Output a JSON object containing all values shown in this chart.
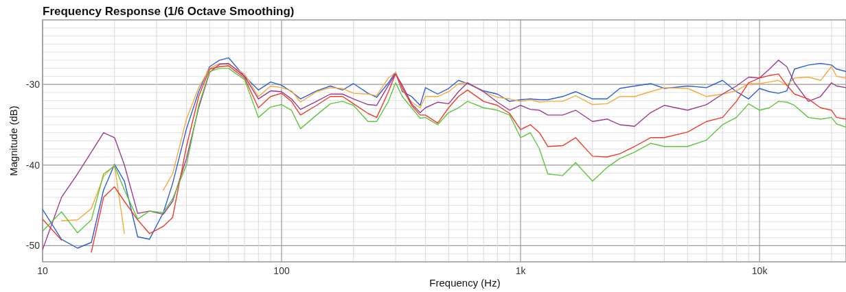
{
  "chart_data": {
    "type": "line",
    "title": "Frequency Response (1/6 Octave Smoothing)",
    "xlabel": "Frequency (Hz)",
    "ylabel": "Magnitude (dB)",
    "log": "x",
    "grid": true,
    "marker": "none",
    "line_style": "solid",
    "xlim": [
      10,
      23000
    ],
    "ylim": [
      -52,
      -22
    ],
    "xticks": [
      {
        "value": 10,
        "label": "10"
      },
      {
        "value": 20,
        "label": null
      },
      {
        "value": 30,
        "label": null
      },
      {
        "value": 40,
        "label": null
      },
      {
        "value": 50,
        "label": null
      },
      {
        "value": 60,
        "label": null
      },
      {
        "value": 70,
        "label": null
      },
      {
        "value": 80,
        "label": null
      },
      {
        "value": 90,
        "label": null
      },
      {
        "value": 100,
        "label": "100"
      },
      {
        "value": 200,
        "label": null
      },
      {
        "value": 300,
        "label": null
      },
      {
        "value": 400,
        "label": null
      },
      {
        "value": 500,
        "label": null
      },
      {
        "value": 600,
        "label": null
      },
      {
        "value": 700,
        "label": null
      },
      {
        "value": 800,
        "label": null
      },
      {
        "value": 900,
        "label": null
      },
      {
        "value": 1000,
        "label": "1k"
      },
      {
        "value": 2000,
        "label": null
      },
      {
        "value": 3000,
        "label": null
      },
      {
        "value": 4000,
        "label": null
      },
      {
        "value": 5000,
        "label": null
      },
      {
        "value": 6000,
        "label": null
      },
      {
        "value": 7000,
        "label": null
      },
      {
        "value": 8000,
        "label": null
      },
      {
        "value": 9000,
        "label": null
      },
      {
        "value": 10000,
        "label": "10k"
      },
      {
        "value": 20000,
        "label": null
      }
    ],
    "yticks": [
      {
        "value": -52,
        "label": null
      },
      {
        "value": -51,
        "label": null
      },
      -50,
      {
        "value": -49,
        "label": null
      },
      {
        "value": -48,
        "label": null
      },
      {
        "value": -47,
        "label": null
      },
      {
        "value": -46,
        "label": null
      },
      {
        "value": -45,
        "label": null
      },
      {
        "value": -44,
        "label": null
      },
      {
        "value": -43,
        "label": null
      },
      {
        "value": -42,
        "label": null
      },
      {
        "value": -41,
        "label": null
      },
      -40,
      {
        "value": -39,
        "label": null
      },
      {
        "value": -38,
        "label": null
      },
      {
        "value": -37,
        "label": null
      },
      {
        "value": -36,
        "label": null
      },
      {
        "value": -35,
        "label": null
      },
      {
        "value": -34,
        "label": null
      },
      {
        "value": -33,
        "label": null
      },
      {
        "value": -32,
        "label": null
      },
      {
        "value": -31,
        "label": null
      },
      -30,
      {
        "value": -29,
        "label": null
      },
      {
        "value": -28,
        "label": null
      },
      {
        "value": -27,
        "label": null
      },
      {
        "value": -26,
        "label": null
      },
      {
        "value": -25,
        "label": null
      },
      {
        "value": -24,
        "label": null
      },
      {
        "value": -23,
        "label": null
      },
      {
        "value": -22,
        "label": null
      }
    ],
    "x": [
      10,
      12,
      14,
      16,
      18,
      20,
      22,
      25,
      28,
      32,
      35,
      40,
      45,
      50,
      55,
      60,
      70,
      80,
      90,
      100,
      110,
      120,
      140,
      160,
      180,
      200,
      230,
      250,
      280,
      300,
      320,
      350,
      380,
      400,
      450,
      500,
      550,
      600,
      700,
      800,
      900,
      1000,
      1100,
      1200,
      1300,
      1500,
      1700,
      2000,
      2300,
      2600,
      3000,
      3500,
      4000,
      5000,
      6000,
      7000,
      8000,
      9000,
      10000,
      11000,
      12000,
      13000,
      14000,
      16000,
      18000,
      20000,
      21000,
      23000
    ],
    "series": [
      {
        "color": "#2a5fd8",
        "values": [
          -45.5,
          -49.2,
          -50.3,
          -49.6,
          -43.1,
          -39.9,
          -42.0,
          -48.9,
          -49.2,
          -45.9,
          -42.3,
          -35.5,
          -30.9,
          -27.8,
          -27.0,
          -26.7,
          -29.0,
          -30.7,
          -29.7,
          -30.1,
          -30.9,
          -31.8,
          -30.8,
          -30.2,
          -30.7,
          -29.9,
          -31.1,
          -31.6,
          -29.8,
          -28.5,
          -30.9,
          -31.5,
          -32.6,
          -30.4,
          -31.2,
          -30.5,
          -29.5,
          -29.9,
          -30.8,
          -31.2,
          -32.1,
          -31.9,
          -31.8,
          -31.9,
          -31.9,
          -31.5,
          -30.9,
          -31.8,
          -31.8,
          -30.5,
          -30.2,
          -29.9,
          -30.5,
          -30.2,
          -30.4,
          -29.5,
          -30.9,
          -31.8,
          -30.5,
          -30.9,
          -31.1,
          -30.8,
          -28.1,
          -27.6,
          -27.4,
          -27.6,
          -28.1,
          -28.4
        ]
      },
      {
        "color": "#f9a93a",
        "values": [
          null,
          -46.9,
          -46.8,
          -45.4,
          -41.4,
          -40.0,
          -48.5,
          null,
          null,
          -43.1,
          -41.1,
          -34.3,
          -30.4,
          -28.0,
          -27.4,
          -27.5,
          -28.7,
          -31.5,
          -30.2,
          -30.4,
          -30.8,
          -32.2,
          -30.9,
          -30.4,
          -30.5,
          -31.1,
          -31.2,
          -31.4,
          -29.2,
          -28.5,
          -30.7,
          -32.2,
          -32.9,
          -31.5,
          -31.5,
          -30.9,
          -29.9,
          -29.8,
          -30.9,
          -31.6,
          -31.8,
          -32.1,
          -31.9,
          -32.2,
          -32.1,
          -32.1,
          -31.4,
          -32.5,
          -32.4,
          -31.5,
          -31.5,
          -30.9,
          -30.4,
          -30.5,
          -31.5,
          -31.2,
          -30.8,
          -29.9,
          -29.9,
          -29.7,
          -29.5,
          -30.1,
          -29.2,
          -29.1,
          -29.5,
          -27.8,
          -29.0,
          -29.2
        ]
      },
      {
        "color": "#9b3b8c",
        "values": [
          -50.5,
          -44.0,
          -41.1,
          -38.4,
          -36.0,
          -36.6,
          -40.0,
          -46.0,
          -45.7,
          -46.1,
          -44.5,
          -39.2,
          -32.9,
          -28.5,
          -27.5,
          -27.4,
          -29.0,
          -31.8,
          -30.8,
          -30.9,
          -31.8,
          -33.1,
          -32.1,
          -31.2,
          -31.2,
          -31.8,
          -32.5,
          -32.6,
          -30.1,
          -28.7,
          -30.1,
          -32.4,
          -33.5,
          -32.9,
          -32.2,
          -32.4,
          -30.9,
          -29.8,
          -30.9,
          -32.2,
          -33.2,
          -32.6,
          -33.1,
          -33.2,
          -33.8,
          -33.8,
          -33.2,
          -34.6,
          -34.3,
          -35.0,
          -35.2,
          -33.5,
          -32.6,
          -33.2,
          -32.5,
          -31.2,
          -30.2,
          -29.1,
          -29.2,
          -28.1,
          -27.0,
          -27.8,
          -29.8,
          -32.1,
          -31.5,
          -29.8,
          -30.2,
          -30.4
        ]
      },
      {
        "color": "#ee3b2b",
        "values": [
          -46.7,
          -49.3,
          null,
          -50.8,
          -44.0,
          -42.7,
          -44.5,
          -46.8,
          -48.5,
          -47.6,
          -46.5,
          -37.7,
          -31.5,
          -28.1,
          -27.8,
          -27.7,
          -29.2,
          -32.9,
          -31.5,
          -31.1,
          -32.1,
          -33.8,
          -32.6,
          -31.5,
          -31.5,
          -32.4,
          -33.6,
          -34.1,
          -30.9,
          -28.7,
          -30.4,
          -32.6,
          -33.8,
          -33.8,
          -34.8,
          -32.9,
          -31.5,
          -30.7,
          -32.1,
          -32.6,
          -33.6,
          -35.6,
          -35.0,
          -36.0,
          -37.7,
          -37.6,
          -36.6,
          -38.9,
          -39.0,
          -38.6,
          -37.7,
          -36.6,
          -36.6,
          -35.9,
          -34.6,
          -34.1,
          -32.1,
          -29.8,
          -29.2,
          -28.9,
          -28.7,
          -30.1,
          -31.2,
          -31.8,
          -32.9,
          -33.2,
          -34.1,
          -34.3
        ]
      },
      {
        "color": "#5cc63c",
        "values": [
          -48.2,
          -45.8,
          -48.4,
          -46.8,
          -41.1,
          -40.1,
          -43.1,
          -46.7,
          -45.7,
          -45.9,
          -44.2,
          -40.0,
          -32.6,
          -28.4,
          -28.0,
          -28.0,
          -29.4,
          -34.1,
          -32.8,
          -32.5,
          -33.2,
          -35.5,
          -33.8,
          -32.4,
          -32.1,
          -32.6,
          -34.6,
          -34.6,
          -32.1,
          -29.8,
          -31.5,
          -32.9,
          -34.2,
          -34.1,
          -35.0,
          -33.5,
          -32.9,
          -32.1,
          -32.9,
          -33.2,
          -33.8,
          -36.6,
          -36.0,
          -38.0,
          -41.1,
          -41.3,
          -39.7,
          -42.0,
          -40.3,
          -39.2,
          -38.4,
          -37.3,
          -37.7,
          -37.7,
          -36.9,
          -35.0,
          -34.1,
          -32.4,
          -33.2,
          -32.9,
          -32.1,
          -32.2,
          -32.6,
          -34.1,
          -34.3,
          -34.1,
          -34.9,
          -35.3
        ]
      }
    ]
  }
}
